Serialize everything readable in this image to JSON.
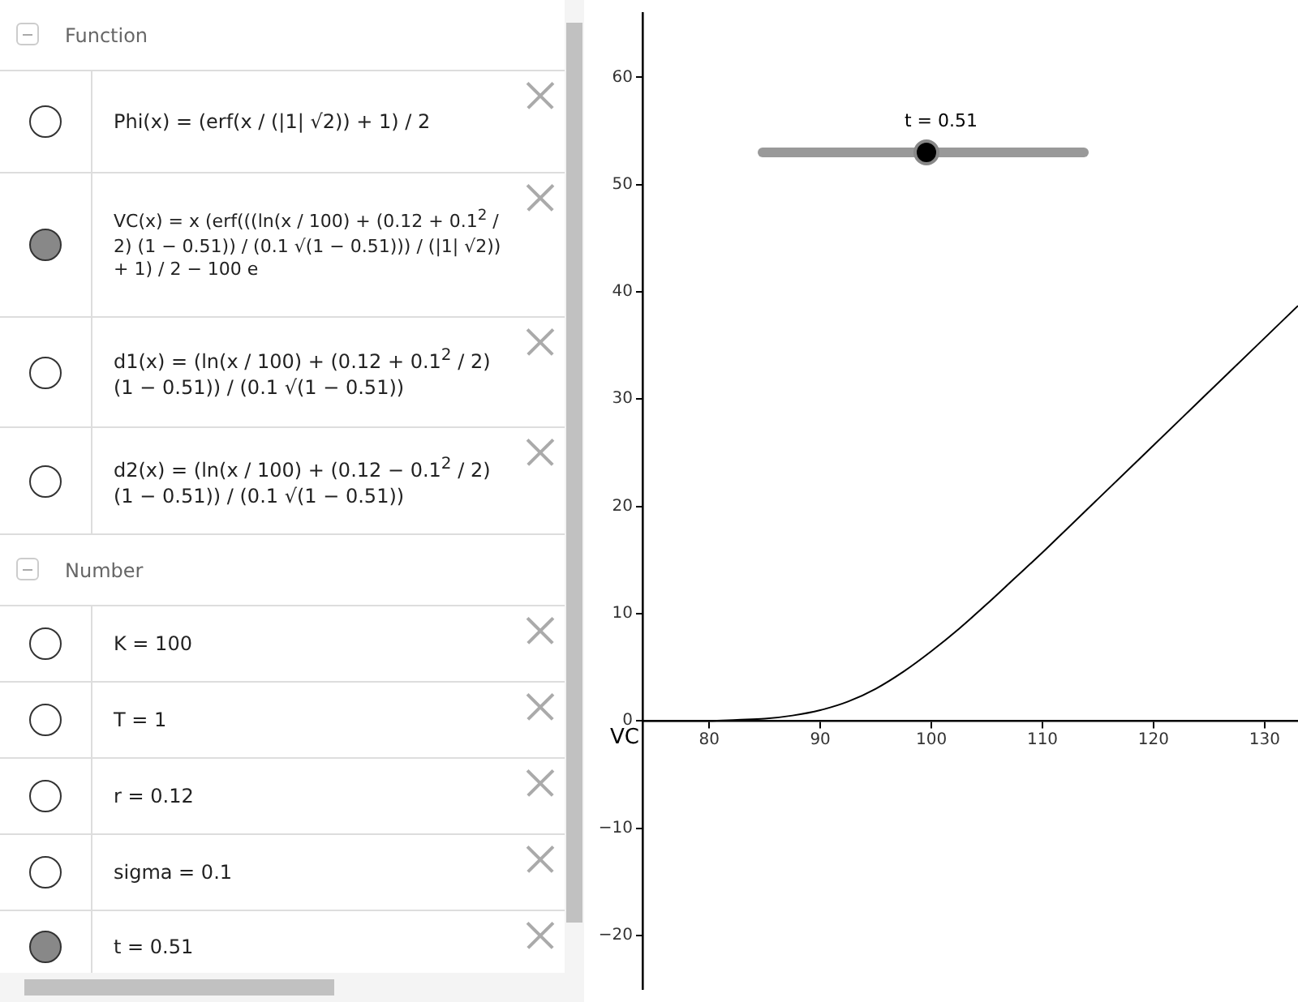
{
  "chart_data": {
    "type": "line",
    "x": [
      74,
      77,
      80,
      82.5,
      85,
      87.5,
      90,
      92.5,
      95,
      97.5,
      100,
      102.5,
      105,
      107.5,
      110,
      112.5,
      115,
      120,
      125,
      130,
      133
    ],
    "series": [
      {
        "name": "VC",
        "color": "#000000",
        "values": [
          0,
          0,
          0,
          0.1,
          0.2,
          0.5,
          1.0,
          1.8,
          3.0,
          4.6,
          6.5,
          8.6,
          10.9,
          13.3,
          15.7,
          18.2,
          20.7,
          25.7,
          30.7,
          35.7,
          38.7
        ]
      }
    ],
    "xlim": [
      74,
      133
    ],
    "ylim": [
      -25,
      66
    ],
    "xticks": [
      80,
      90,
      100,
      110,
      120,
      130
    ],
    "yticks": [
      {
        "value": -20,
        "label": "−20"
      },
      {
        "value": -10,
        "label": "−10"
      },
      0,
      10,
      20,
      30,
      40,
      50,
      60
    ],
    "grid": false,
    "legend": false,
    "marker": "none",
    "annotations": [
      "Function",
      "Phi(x) = (erf(x / (|1| √2)) + 1) / 2",
      "VC(x) = x (erf(((ln(x / 100) + (0.12 + 0.1$^{2}$ / 2) (1 − 0.51)) / (0.1 √(1 − 0.51))) / (|1| √2)) + 1) / 2 − 100 e",
      "d1(x) = (ln(x / 100) + (0.12 + 0.1$^{2}$ / 2) (1 − 0.51)) / (0.1 √(1 − 0.51))",
      "d2(x) = (ln(x / 100) + (0.12 − 0.1$^{2}$ / 2) (1 − 0.51)) / (0.1 √(1 − 0.51))",
      "Number",
      "K = 100",
      "T = 1",
      "r = 0.12",
      "sigma = 0.1",
      "t = 0.51",
      "t = 0.51"
    ]
  }
}
